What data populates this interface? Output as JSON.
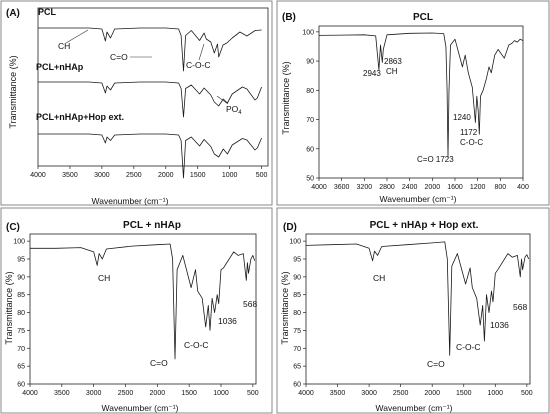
{
  "chart_data": [
    {
      "panel": "(A)",
      "type": "line",
      "title": "",
      "xlabel": "Wavenumber (cm⁻¹)",
      "ylabel": "Transmittance (%)",
      "xlim": [
        4000,
        400
      ],
      "x_ticks": [
        4000,
        3500,
        3000,
        2500,
        2000,
        1500,
        1000,
        500
      ],
      "y_ticks": [],
      "grid": false,
      "series": [
        {
          "name": "PCL",
          "x": [
            4000,
            3600,
            3200,
            3000,
            2945,
            2920,
            2865,
            2800,
            2400,
            2000,
            1800,
            1760,
            1723,
            1690,
            1600,
            1470,
            1400,
            1365,
            1295,
            1240,
            1190,
            1172,
            1105,
            1045,
            960,
            840,
            730,
            600,
            500
          ],
          "y": [
            0,
            0,
            0,
            -0.2,
            -2.6,
            -0.8,
            -2.0,
            -0.2,
            0,
            0,
            -0.2,
            -1.5,
            -8.6,
            -1.5,
            -0.5,
            -2.5,
            -1.0,
            -2.2,
            -2.8,
            -5.0,
            -3.2,
            -5.8,
            -3.4,
            -3.0,
            -2.0,
            -0.8,
            -1.6,
            -0.5,
            -0.4
          ]
        },
        {
          "name": "PCL+nHAp",
          "x": [
            4000,
            3600,
            3200,
            3000,
            2945,
            2920,
            2865,
            2800,
            2400,
            2000,
            1800,
            1760,
            1723,
            1690,
            1600,
            1470,
            1400,
            1295,
            1240,
            1172,
            1100,
            1036,
            960,
            800,
            730,
            603,
            568,
            500
          ],
          "y": [
            0,
            0,
            0,
            -0.2,
            -2.2,
            -0.8,
            -1.6,
            -0.2,
            0,
            0,
            -0.2,
            -1.3,
            -7.0,
            -1.3,
            -0.6,
            -2.4,
            -1.2,
            -2.6,
            -4.0,
            -4.8,
            -3.4,
            -4.2,
            -2.4,
            -1.0,
            -1.4,
            -3.6,
            -3.2,
            -1.0
          ]
        },
        {
          "name": "PCL+nHAp+Hop ext.",
          "x": [
            4000,
            3600,
            3200,
            3000,
            2945,
            2920,
            2865,
            2800,
            2400,
            2000,
            1800,
            1760,
            1723,
            1690,
            1600,
            1470,
            1400,
            1295,
            1240,
            1172,
            1100,
            1036,
            960,
            800,
            730,
            603,
            568,
            500
          ],
          "y": [
            0,
            0,
            0,
            -0.2,
            -1.8,
            -0.6,
            -1.3,
            -0.2,
            0,
            0,
            -0.2,
            -1.3,
            -8.8,
            -1.3,
            -0.6,
            -2.4,
            -1.1,
            -2.5,
            -4.0,
            -4.6,
            -3.0,
            -4.0,
            -2.2,
            -0.9,
            -1.2,
            -3.2,
            -2.8,
            -0.8
          ]
        }
      ],
      "annotations": {
        "series_labels": [
          "PCL",
          "PCL+nHAp",
          "PCL+nHAp+Hop ext."
        ],
        "ch": "CH",
        "carbonyl": "C=O",
        "coc": "C-O-C",
        "po4_main": "PO",
        "po4_sub": "4"
      }
    },
    {
      "panel": "(B)",
      "type": "line",
      "title": "PCL",
      "xlabel": "Wavenumber (cm⁻¹)",
      "ylabel": "Transmittance (%)",
      "xlim": [
        4000,
        400
      ],
      "ylim": [
        50,
        102
      ],
      "x_ticks": [
        4000,
        3600,
        3200,
        2800,
        2400,
        2000,
        1600,
        1200,
        800,
        400
      ],
      "y_ticks": [
        50,
        60,
        70,
        80,
        90,
        100
      ],
      "grid": false,
      "series": [
        {
          "name": "PCL",
          "x": [
            4000,
            3600,
            3200,
            3000,
            2943,
            2915,
            2883,
            2865,
            2800,
            2400,
            2000,
            1800,
            1760,
            1740,
            1723,
            1705,
            1680,
            1600,
            1470,
            1420,
            1365,
            1295,
            1240,
            1215,
            1190,
            1172,
            1150,
            1105,
            1045,
            1000,
            960,
            900,
            840,
            730,
            650,
            600,
            550,
            500,
            450,
            400
          ],
          "y": [
            98.8,
            98.9,
            99.0,
            98.6,
            87.0,
            95.5,
            89.5,
            94.0,
            99.0,
            99.5,
            99.6,
            99.4,
            95.0,
            80.0,
            57.0,
            80.0,
            95.5,
            97.5,
            88.0,
            92.0,
            86.0,
            81.0,
            69.0,
            78.0,
            73.0,
            65.0,
            78.0,
            80.0,
            84.0,
            88.0,
            86.0,
            92.0,
            94.0,
            91.0,
            95.5,
            96.0,
            97.0,
            96.5,
            97.5,
            97.0
          ]
        }
      ],
      "annotations": {
        "peak_2943": "2943",
        "peak_2863": "2863",
        "ch": "CH",
        "peak_1240": "1240",
        "peak_1172": "1172",
        "coc": "C-O-C",
        "carbonyl": "C=O 1723"
      }
    },
    {
      "panel": "(C)",
      "type": "line",
      "title": "PCL + nHAp",
      "xlabel": "Wavenumber (cm⁻¹)",
      "ylabel": "Transmittance (%)",
      "xlim": [
        4000,
        450
      ],
      "ylim": [
        60,
        102
      ],
      "x_ticks": [
        4000,
        3500,
        3000,
        2500,
        2000,
        1500,
        1000,
        500
      ],
      "y_ticks": [
        60,
        65,
        70,
        75,
        80,
        85,
        90,
        95,
        100
      ],
      "grid": false,
      "series": [
        {
          "name": "PCL + nHAp",
          "x": [
            4000,
            3600,
            3200,
            3000,
            2945,
            2915,
            2865,
            2800,
            2400,
            2000,
            1800,
            1760,
            1723,
            1690,
            1600,
            1470,
            1400,
            1365,
            1295,
            1240,
            1200,
            1172,
            1140,
            1100,
            1060,
            1036,
            1000,
            960,
            800,
            730,
            650,
            603,
            585,
            568,
            530,
            500,
            470
          ],
          "y": [
            98.0,
            98.0,
            98.2,
            97.0,
            93.2,
            96.5,
            95.0,
            97.8,
            98.6,
            99.0,
            99.2,
            95.0,
            67.0,
            92.0,
            96.0,
            87.0,
            92.0,
            86.0,
            84.0,
            76.0,
            82.0,
            75.0,
            84.0,
            80.0,
            85.0,
            82.5,
            92.0,
            92.5,
            97.0,
            96.0,
            96.5,
            89.0,
            94.0,
            91.0,
            95.0,
            96.0,
            94.5
          ]
        }
      ],
      "annotations": {
        "ch": "CH",
        "carbonyl": "C=O",
        "coc": "C-O-C",
        "peak_1036": "1036",
        "peak_568": "568"
      }
    },
    {
      "panel": "(D)",
      "type": "line",
      "title": "PCL + nHAp + Hop ext.",
      "xlabel": "Wavenumber (cm⁻¹)",
      "ylabel": "Transmittance (%)",
      "xlim": [
        4000,
        450
      ],
      "ylim": [
        60,
        102
      ],
      "x_ticks": [
        4000,
        3500,
        3000,
        2500,
        2000,
        1500,
        1000,
        500
      ],
      "y_ticks": [
        60,
        65,
        70,
        75,
        80,
        85,
        90,
        95,
        100
      ],
      "grid": false,
      "series": [
        {
          "name": "PCL + nHAp + Hop ext.",
          "x": [
            4000,
            3600,
            3200,
            3000,
            2945,
            2915,
            2865,
            2800,
            2400,
            2000,
            1800,
            1760,
            1723,
            1690,
            1600,
            1470,
            1400,
            1365,
            1295,
            1240,
            1200,
            1172,
            1140,
            1100,
            1060,
            1036,
            1000,
            960,
            800,
            730,
            650,
            603,
            585,
            568,
            530,
            500,
            470
          ],
          "y": [
            98.8,
            99.0,
            99.2,
            98.0,
            94.5,
            97.2,
            96.0,
            98.5,
            99.0,
            99.5,
            99.8,
            95.0,
            68.0,
            93.0,
            96.5,
            88.0,
            92.5,
            87.0,
            84.0,
            76.5,
            82.0,
            72.0,
            85.0,
            80.0,
            86.0,
            83.0,
            91.0,
            92.0,
            96.5,
            95.5,
            96.0,
            90.0,
            95.0,
            92.0,
            95.5,
            96.2,
            95.0
          ]
        }
      ],
      "annotations": {
        "ch": "CH",
        "carbonyl": "C=O",
        "coc": "C-O-C",
        "peak_1036": "1036",
        "peak_568": "568"
      }
    }
  ]
}
